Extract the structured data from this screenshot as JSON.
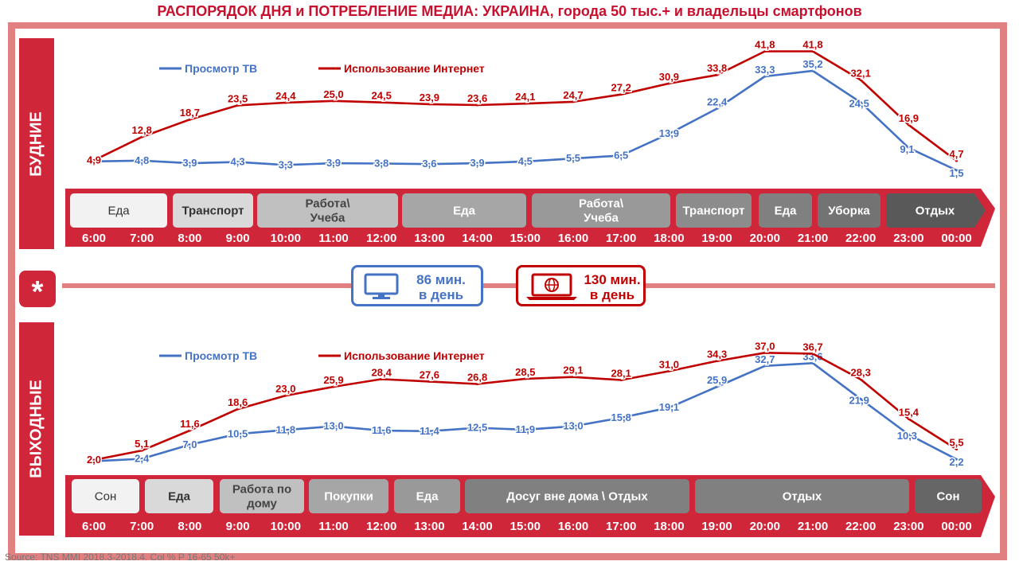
{
  "title": "РАСПОРЯДОК ДНЯ и ПОТРЕБЛЕНИЕ МЕДИА: УКРАИНА, города 50 тыс.+ и владельцы смартфонов",
  "source": "Source: TNS MMI 2018.3-2018.4.  Col % P 16-65 50k+",
  "colors": {
    "tv": "#4472c4",
    "internet": "#c00000",
    "accent": "#d0263a"
  },
  "middle": {
    "star": "*",
    "tv_box": {
      "icon": "monitor-icon",
      "line1": "86 мин.",
      "line2": "в день"
    },
    "internet_box": {
      "icon": "laptop-globe-icon",
      "line1": "130 мин.",
      "line2": "в день"
    }
  },
  "chart_data": [
    {
      "type": "line",
      "side_label": "БУДНИЕ",
      "legend": [
        "Просмотр ТВ",
        "Использование Интернет"
      ],
      "x": [
        "6:00",
        "7:00",
        "8:00",
        "9:00",
        "10:00",
        "11:00",
        "12:00",
        "13:00",
        "14:00",
        "15:00",
        "16:00",
        "17:00",
        "18:00",
        "19:00",
        "20:00",
        "21:00",
        "22:00",
        "23:00",
        "00:00"
      ],
      "series": [
        {
          "name": "Просмотр ТВ",
          "values": [
            4.5,
            4.8,
            3.9,
            4.3,
            3.3,
            3.9,
            3.8,
            3.6,
            3.9,
            4.5,
            5.5,
            6.5,
            13.9,
            22.4,
            33.3,
            35.2,
            24.5,
            9.1,
            1.5
          ],
          "labels": [
            "",
            "4,8",
            "3,9",
            "4,3",
            "3,3",
            "3,9",
            "3,8",
            "3,6",
            "3,9",
            "4,5",
            "5,5",
            "6,5",
            "13,9",
            "22,4",
            "33,3",
            "35,2",
            "24,5",
            "9,1",
            "1,5"
          ]
        },
        {
          "name": "Использование Интернет",
          "values": [
            4.9,
            12.8,
            18.7,
            23.5,
            24.4,
            25.0,
            24.5,
            23.9,
            23.6,
            24.1,
            24.7,
            27.2,
            30.9,
            33.8,
            41.8,
            41.8,
            32.1,
            16.9,
            4.7
          ],
          "labels": [
            "4,9",
            "12,8",
            "18,7",
            "23,5",
            "24,4",
            "25,0",
            "24,5",
            "23,9",
            "23,6",
            "24,1",
            "24,7",
            "27,2",
            "30,9",
            "33,8",
            "41,8",
            "41,8",
            "32,1",
            "16,9",
            "4,7"
          ]
        }
      ],
      "activities": [
        {
          "label": "Еда",
          "shade": "#f2f2f2",
          "text": "#333333"
        },
        {
          "label": "Транспорт",
          "shade": "#d9d9d9",
          "text": "#333333"
        },
        {
          "label": "Работа\\ Учеба",
          "shade": "#c0c0c0",
          "text": "#444444"
        },
        {
          "label": "Еда",
          "shade": "#a6a6a6",
          "text": "#ffffff"
        },
        {
          "label": "Работа\\ Учеба",
          "shade": "#999999",
          "text": "#ffffff"
        },
        {
          "label": "Транспорт",
          "shade": "#8c8c8c",
          "text": "#ffffff"
        },
        {
          "label": "Еда",
          "shade": "#808080",
          "text": "#ffffff"
        },
        {
          "label": "Уборка",
          "shade": "#737373",
          "text": "#ffffff"
        },
        {
          "label": "Отдых",
          "shade": "#595959",
          "text": "#ffffff"
        }
      ]
    },
    {
      "type": "line",
      "side_label": "ВЫХОДНЫЕ",
      "legend": [
        "Просмотр ТВ",
        "Использование Интернет"
      ],
      "x": [
        "6:00",
        "7:00",
        "8:00",
        "9:00",
        "10:00",
        "11:00",
        "12:00",
        "13:00",
        "14:00",
        "15:00",
        "16:00",
        "17:00",
        "18:00",
        "19:00",
        "20:00",
        "21:00",
        "22:00",
        "23:00",
        "00:00"
      ],
      "series": [
        {
          "name": "Просмотр ТВ",
          "values": [
            1.6,
            2.4,
            7.0,
            10.5,
            11.8,
            13.0,
            11.6,
            11.4,
            12.5,
            11.9,
            13.0,
            15.8,
            19.1,
            25.9,
            32.7,
            33.6,
            21.9,
            10.3,
            2.2
          ],
          "labels": [
            "",
            "2,4",
            "7,0",
            "10,5",
            "11,8",
            "13,0",
            "11,6",
            "11,4",
            "12,5",
            "11,9",
            "13,0",
            "15,8",
            "19,1",
            "25,9",
            "32,7",
            "33,6",
            "21,9",
            "10,3",
            "2,2"
          ]
        },
        {
          "name": "Использование Интернет",
          "values": [
            2.0,
            5.1,
            11.6,
            18.6,
            23.0,
            25.9,
            28.4,
            27.6,
            26.8,
            28.5,
            29.1,
            28.1,
            31.0,
            34.3,
            37.0,
            36.7,
            28.3,
            15.4,
            5.5
          ],
          "labels": [
            "2,0",
            "5,1",
            "11,6",
            "18,6",
            "23,0",
            "25,9",
            "28,4",
            "27,6",
            "26,8",
            "28,5",
            "29,1",
            "28,1",
            "31,0",
            "34,3",
            "37,0",
            "36,7",
            "28,3",
            "15,4",
            "5,5"
          ]
        }
      ],
      "activities": [
        {
          "label": "Сон",
          "shade": "#f2f2f2",
          "text": "#333333"
        },
        {
          "label": "Еда",
          "shade": "#d9d9d9",
          "text": "#333333"
        },
        {
          "label": "Работа по дому",
          "shade": "#c0c0c0",
          "text": "#444444"
        },
        {
          "label": "Покупки",
          "shade": "#a6a6a6",
          "text": "#ffffff"
        },
        {
          "label": "Еда",
          "shade": "#999999",
          "text": "#ffffff"
        },
        {
          "label": "Досуг вне дома \\ Отдых",
          "shade": "#808080",
          "text": "#ffffff"
        },
        {
          "label": "Отдых",
          "shade": "#808080",
          "text": "#ffffff"
        },
        {
          "label": "Сон",
          "shade": "#666666",
          "text": "#ffffff"
        }
      ]
    }
  ]
}
